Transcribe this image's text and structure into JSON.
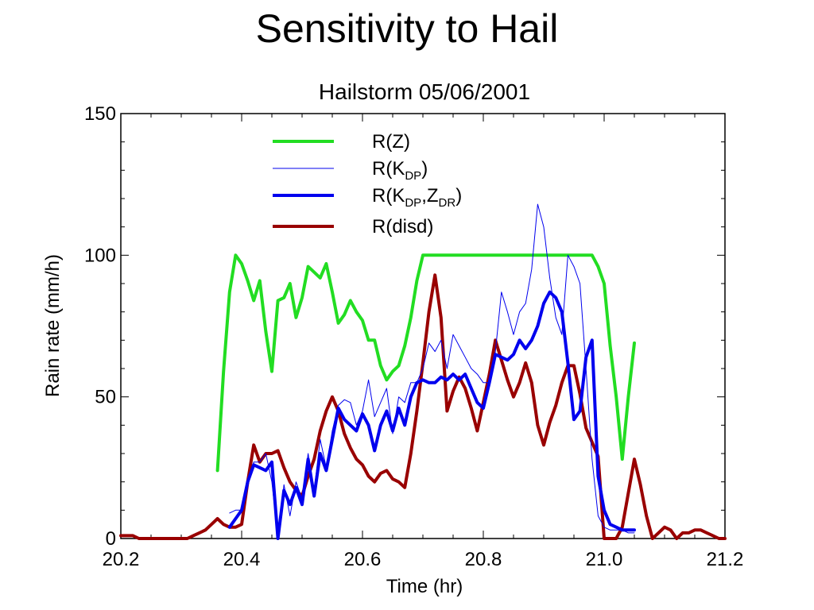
{
  "slide": {
    "title": "Sensitivity to Hail"
  },
  "chart_data": {
    "type": "line",
    "title": "Hailstorm 05/06/2001",
    "xlabel": "Time (hr)",
    "ylabel": "Rain rate (mm/h)",
    "xlim": [
      20.2,
      21.2
    ],
    "ylim": [
      0,
      150
    ],
    "xticks": [
      20.2,
      20.4,
      20.6,
      20.8,
      21.0,
      21.2
    ],
    "xtick_labels": [
      "20.2",
      "20.4",
      "20.6",
      "20.8",
      "21.0",
      "21.2"
    ],
    "yticks": [
      0,
      50,
      100,
      150
    ],
    "ytick_labels": [
      "0",
      "50",
      "100",
      "150"
    ],
    "grid": false,
    "legend_position": "top-center",
    "series": [
      {
        "name": "R(Z)",
        "legend": {
          "base": "R(Z)",
          "sub1": "",
          "mid": "",
          "sub2": "",
          "end": ""
        },
        "color": "#22dd22",
        "style": "thick",
        "x": [
          20.36,
          20.37,
          20.38,
          20.39,
          20.4,
          20.41,
          20.42,
          20.43,
          20.44,
          20.45,
          20.46,
          20.47,
          20.48,
          20.49,
          20.5,
          20.51,
          20.52,
          20.53,
          20.54,
          20.55,
          20.56,
          20.57,
          20.58,
          20.59,
          20.6,
          20.61,
          20.62,
          20.63,
          20.64,
          20.65,
          20.66,
          20.67,
          20.68,
          20.69,
          20.7,
          20.72,
          20.78,
          20.84,
          20.9,
          20.96,
          20.98,
          20.99,
          21.0,
          21.01,
          21.02,
          21.03,
          21.04,
          21.05
        ],
        "values": [
          24,
          59,
          87,
          100,
          97,
          91,
          84,
          91,
          73,
          59,
          84,
          85,
          90,
          78,
          85,
          96,
          94,
          92,
          97,
          87,
          76,
          79,
          84,
          80,
          77,
          70,
          70,
          61,
          56,
          59,
          61,
          68,
          78,
          91,
          100,
          100,
          100,
          100,
          100,
          100,
          100,
          96,
          90,
          68,
          50,
          28,
          50,
          69
        ]
      },
      {
        "name": "R(K_DP)",
        "legend": {
          "base": "R(K",
          "sub1": "DP",
          "mid": ")",
          "sub2": "",
          "end": ""
        },
        "color": "#0000ee",
        "style": "thin",
        "x": [
          20.38,
          20.39,
          20.4,
          20.41,
          20.42,
          20.43,
          20.44,
          20.45,
          20.46,
          20.47,
          20.48,
          20.49,
          20.5,
          20.51,
          20.52,
          20.53,
          20.54,
          20.55,
          20.56,
          20.57,
          20.58,
          20.59,
          20.6,
          20.61,
          20.62,
          20.63,
          20.64,
          20.65,
          20.66,
          20.67,
          20.68,
          20.69,
          20.7,
          20.71,
          20.72,
          20.73,
          20.74,
          20.75,
          20.76,
          20.77,
          20.78,
          20.79,
          20.8,
          20.81,
          20.82,
          20.83,
          20.84,
          20.85,
          20.86,
          20.87,
          20.88,
          20.89,
          20.9,
          20.91,
          20.92,
          20.93,
          20.94,
          20.95,
          20.96,
          20.97,
          20.98,
          20.99,
          21.0,
          21.01,
          21.02,
          21.03,
          21.04,
          21.05
        ],
        "values": [
          9,
          10,
          10,
          20,
          27,
          27,
          30,
          20,
          0,
          19,
          8,
          20,
          14,
          30,
          17,
          35,
          25,
          38,
          47,
          49,
          48,
          40,
          45,
          56,
          43,
          48,
          53,
          37,
          50,
          48,
          55,
          55,
          60,
          69,
          66,
          70,
          60,
          72,
          68,
          64,
          60,
          58,
          55,
          55,
          66,
          87,
          80,
          72,
          80,
          83,
          95,
          118,
          110,
          92,
          78,
          72,
          100,
          96,
          90,
          60,
          28,
          8,
          4,
          3,
          3,
          3,
          2,
          2
        ],
        "x_note": ""
      },
      {
        "name": "R(K_DP,Z_DR)",
        "legend": {
          "base": "R(K",
          "sub1": "DP",
          "mid": ",Z",
          "sub2": "DR",
          "end": ")"
        },
        "color": "#0000ee",
        "style": "thick",
        "x": [
          20.38,
          20.39,
          20.4,
          20.41,
          20.42,
          20.43,
          20.44,
          20.45,
          20.46,
          20.47,
          20.48,
          20.49,
          20.5,
          20.51,
          20.52,
          20.53,
          20.54,
          20.55,
          20.56,
          20.57,
          20.58,
          20.59,
          20.6,
          20.61,
          20.62,
          20.63,
          20.64,
          20.65,
          20.66,
          20.67,
          20.68,
          20.69,
          20.7,
          20.71,
          20.72,
          20.73,
          20.74,
          20.75,
          20.76,
          20.77,
          20.78,
          20.79,
          20.8,
          20.81,
          20.82,
          20.83,
          20.84,
          20.85,
          20.86,
          20.87,
          20.88,
          20.89,
          20.9,
          20.91,
          20.92,
          20.93,
          20.94,
          20.95,
          20.96,
          20.97,
          20.98,
          20.99,
          21.0,
          21.01,
          21.02,
          21.03,
          21.04,
          21.05
        ],
        "values": [
          4,
          7,
          10,
          20,
          26,
          25,
          24,
          27,
          0,
          17,
          12,
          18,
          12,
          28,
          15,
          30,
          24,
          35,
          46,
          42,
          40,
          38,
          44,
          40,
          31,
          40,
          45,
          38,
          46,
          40,
          50,
          55,
          56,
          55,
          55,
          57,
          56,
          58,
          56,
          58,
          53,
          48,
          46,
          55,
          65,
          64,
          63,
          65,
          70,
          67,
          70,
          75,
          83,
          87,
          85,
          80,
          62,
          42,
          45,
          64,
          70,
          22,
          10,
          5,
          4,
          3,
          3,
          3
        ]
      },
      {
        "name": "R(disd)",
        "legend": {
          "base": "R(disd)",
          "sub1": "",
          "mid": "",
          "sub2": "",
          "end": ""
        },
        "color": "#990000",
        "style": "thick",
        "x": [
          20.2,
          20.21,
          20.22,
          20.23,
          20.24,
          20.25,
          20.26,
          20.27,
          20.28,
          20.29,
          20.3,
          20.31,
          20.32,
          20.33,
          20.34,
          20.35,
          20.36,
          20.37,
          20.38,
          20.39,
          20.4,
          20.41,
          20.42,
          20.43,
          20.44,
          20.45,
          20.46,
          20.47,
          20.48,
          20.49,
          20.5,
          20.51,
          20.52,
          20.53,
          20.54,
          20.55,
          20.56,
          20.57,
          20.58,
          20.59,
          20.6,
          20.61,
          20.62,
          20.63,
          20.64,
          20.65,
          20.66,
          20.67,
          20.68,
          20.69,
          20.7,
          20.71,
          20.72,
          20.73,
          20.74,
          20.75,
          20.76,
          20.77,
          20.78,
          20.79,
          20.8,
          20.81,
          20.82,
          20.83,
          20.84,
          20.85,
          20.86,
          20.87,
          20.88,
          20.89,
          20.9,
          20.91,
          20.92,
          20.93,
          20.94,
          20.95,
          20.96,
          20.97,
          20.98,
          20.99,
          21.0,
          21.01,
          21.02,
          21.03,
          21.04,
          21.05,
          21.06,
          21.07,
          21.08,
          21.09,
          21.1,
          21.11,
          21.12,
          21.13,
          21.14,
          21.15,
          21.16,
          21.17,
          21.18,
          21.19,
          21.2
        ],
        "values": [
          1,
          1,
          1,
          0,
          0,
          0,
          0,
          0,
          0,
          0,
          0,
          0,
          1,
          2,
          3,
          5,
          7,
          5,
          4,
          4,
          5,
          20,
          33,
          27,
          30,
          30,
          31,
          25,
          20,
          17,
          15,
          22,
          28,
          38,
          45,
          50,
          45,
          37,
          32,
          28,
          26,
          22,
          20,
          23,
          24,
          21,
          20,
          18,
          30,
          45,
          62,
          80,
          93,
          78,
          45,
          52,
          57,
          53,
          46,
          38,
          48,
          58,
          70,
          63,
          56,
          50,
          55,
          62,
          55,
          40,
          33,
          41,
          47,
          55,
          61,
          61,
          51,
          39,
          34,
          29,
          0,
          0,
          0,
          4,
          16,
          28,
          19,
          8,
          0,
          2,
          4,
          3,
          0,
          2,
          2,
          3,
          3,
          2,
          1,
          0,
          0
        ]
      }
    ]
  }
}
